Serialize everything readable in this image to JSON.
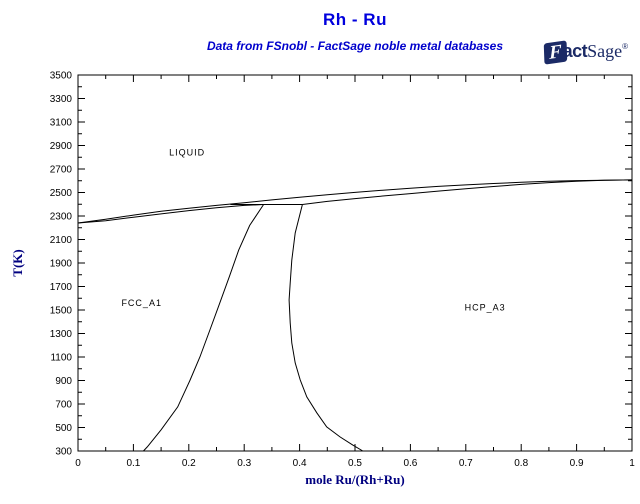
{
  "header": {
    "title": "Rh - Ru",
    "subtitle": "Data from FSnobl - FactSage noble metal databases"
  },
  "logo": {
    "mark_letter": "F",
    "act": "act",
    "sage": "Sage",
    "reg": "®"
  },
  "colors": {
    "background": "#FFFFFF",
    "title": "#0000DD",
    "subtitle": "#0000CC",
    "axis_label": "#000080",
    "tick_label": "#000000",
    "curve": "#000000",
    "logo": "#1B2A66"
  },
  "chart_data": {
    "type": "line",
    "title": "Rh - Ru",
    "xlabel": "mole Ru/(Rh+Ru)",
    "ylabel": "T(K)",
    "xlim": [
      0,
      1
    ],
    "ylim": [
      300,
      3500
    ],
    "grid": false,
    "legend_position": "none",
    "x_ticks": {
      "minor_step": 0.05,
      "major": [
        {
          "v": 0,
          "label": "0"
        },
        {
          "v": 0.1,
          "label": "0.1"
        },
        {
          "v": 0.2,
          "label": "0.2"
        },
        {
          "v": 0.3,
          "label": "0.3"
        },
        {
          "v": 0.4,
          "label": "0.4"
        },
        {
          "v": 0.5,
          "label": "0.5"
        },
        {
          "v": 0.6,
          "label": "0.6"
        },
        {
          "v": 0.7,
          "label": "0.7"
        },
        {
          "v": 0.8,
          "label": "0.8"
        },
        {
          "v": 0.9,
          "label": "0.9"
        },
        {
          "v": 1,
          "label": "1"
        }
      ]
    },
    "y_ticks": {
      "minor_step": 100,
      "major": [
        {
          "v": 300,
          "label": "300"
        },
        {
          "v": 500,
          "label": "500"
        },
        {
          "v": 700,
          "label": "700"
        },
        {
          "v": 900,
          "label": "900"
        },
        {
          "v": 1100,
          "label": "1100"
        },
        {
          "v": 1300,
          "label": "1300"
        },
        {
          "v": 1500,
          "label": "1500"
        },
        {
          "v": 1700,
          "label": "1700"
        },
        {
          "v": 1900,
          "label": "1900"
        },
        {
          "v": 2100,
          "label": "2100"
        },
        {
          "v": 2300,
          "label": "2300"
        },
        {
          "v": 2500,
          "label": "2500"
        },
        {
          "v": 2700,
          "label": "2700"
        },
        {
          "v": 2900,
          "label": "2900"
        },
        {
          "v": 3100,
          "label": "3100"
        },
        {
          "v": 3300,
          "label": "3300"
        },
        {
          "v": 3500,
          "label": "3500"
        }
      ]
    },
    "series": [
      {
        "name": "liquidus",
        "points": [
          [
            0,
            2240
          ],
          [
            0.05,
            2272
          ],
          [
            0.1,
            2308
          ],
          [
            0.15,
            2340
          ],
          [
            0.2,
            2366
          ],
          [
            0.25,
            2390
          ],
          [
            0.3,
            2412
          ],
          [
            0.35,
            2437
          ],
          [
            0.4,
            2460
          ],
          [
            0.45,
            2481
          ],
          [
            0.5,
            2501
          ],
          [
            0.55,
            2520
          ],
          [
            0.6,
            2537
          ],
          [
            0.65,
            2552
          ],
          [
            0.7,
            2565
          ],
          [
            0.75,
            2577
          ],
          [
            0.8,
            2587
          ],
          [
            0.85,
            2595
          ],
          [
            0.9,
            2601
          ],
          [
            0.95,
            2605
          ],
          [
            1,
            2607
          ]
        ]
      },
      {
        "name": "fcc-solidus",
        "points": [
          [
            0,
            2240
          ],
          [
            0.05,
            2260
          ],
          [
            0.1,
            2290
          ],
          [
            0.15,
            2318
          ],
          [
            0.2,
            2346
          ],
          [
            0.25,
            2370
          ],
          [
            0.3,
            2390
          ],
          [
            0.335,
            2398
          ]
        ]
      },
      {
        "name": "peritectic-tie-line",
        "points": [
          [
            0.275,
            2398
          ],
          [
            0.405,
            2398
          ]
        ]
      },
      {
        "name": "hcp-solidus",
        "points": [
          [
            0.405,
            2398
          ],
          [
            0.45,
            2424
          ],
          [
            0.5,
            2448
          ],
          [
            0.55,
            2470
          ],
          [
            0.6,
            2491
          ],
          [
            0.65,
            2512
          ],
          [
            0.7,
            2532
          ],
          [
            0.75,
            2551
          ],
          [
            0.8,
            2569
          ],
          [
            0.85,
            2584
          ],
          [
            0.9,
            2596
          ],
          [
            0.95,
            2604
          ],
          [
            1,
            2607
          ]
        ]
      },
      {
        "name": "fcc-phase-boundary",
        "points": [
          [
            0.335,
            2398
          ],
          [
            0.31,
            2220
          ],
          [
            0.29,
            2010
          ],
          [
            0.273,
            1780
          ],
          [
            0.256,
            1560
          ],
          [
            0.238,
            1330
          ],
          [
            0.22,
            1100
          ],
          [
            0.202,
            900
          ],
          [
            0.18,
            675
          ],
          [
            0.15,
            480
          ],
          [
            0.125,
            335
          ],
          [
            0.118,
            300
          ]
        ]
      },
      {
        "name": "hcp-phase-boundary",
        "points": [
          [
            0.405,
            2398
          ],
          [
            0.392,
            2155
          ],
          [
            0.386,
            1925
          ],
          [
            0.383,
            1730
          ],
          [
            0.381,
            1585
          ],
          [
            0.383,
            1390
          ],
          [
            0.386,
            1220
          ],
          [
            0.392,
            1050
          ],
          [
            0.401,
            905
          ],
          [
            0.413,
            760
          ],
          [
            0.431,
            625
          ],
          [
            0.449,
            505
          ],
          [
            0.473,
            420
          ],
          [
            0.496,
            350
          ],
          [
            0.514,
            300
          ]
        ]
      }
    ],
    "annotations": [
      {
        "label": "LIQUID",
        "x": 0.197,
        "y": 2840
      },
      {
        "label": "FCC_A1",
        "x": 0.115,
        "y": 1560
      },
      {
        "label": "HCP_A3",
        "x": 0.735,
        "y": 1520
      }
    ]
  }
}
